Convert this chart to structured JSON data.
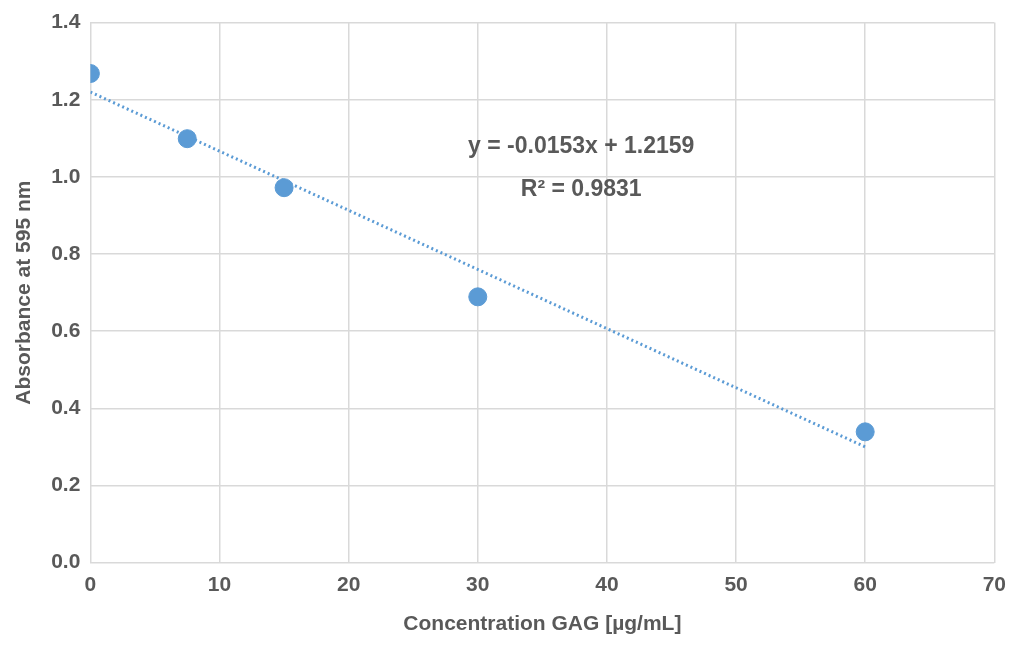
{
  "chart_data": {
    "type": "scatter",
    "xlabel": "Concentration GAG [µg/mL]",
    "ylabel": "Absorbance at 595 nm",
    "series": [
      {
        "type": "scatter",
        "color": "#5b9bd5",
        "x": [
          0,
          7.5,
          15,
          30,
          60
        ],
        "values": [
          1.268,
          1.099,
          0.972,
          0.689,
          0.339
        ],
        "marker": "circle"
      },
      {
        "type": "line",
        "color": "#5b9bd5",
        "x": [
          0,
          60
        ],
        "values": [
          1.22,
          0.3
        ],
        "line_style": "dotted",
        "marker": "none"
      }
    ],
    "annotations": [
      "y = -0.0153x + 1.2159",
      "R² = 0.9831"
    ],
    "xlim": [
      0,
      70
    ],
    "xticks": [
      0,
      10,
      20,
      30,
      40,
      50,
      60,
      70
    ],
    "ylim": [
      0,
      1.4
    ],
    "yticks": [
      {
        "value": 0,
        "label": "0.0"
      },
      {
        "value": 0.2,
        "label": "0.2"
      },
      {
        "value": 0.4,
        "label": "0.4"
      },
      {
        "value": 0.6,
        "label": "0.6"
      },
      {
        "value": 0.8,
        "label": "0.8"
      },
      {
        "value": 1.0,
        "label": "1.0"
      },
      {
        "value": 1.2,
        "label": "1.2"
      },
      {
        "value": 1.4,
        "label": "1.4"
      }
    ],
    "grid": true,
    "legend": false
  }
}
